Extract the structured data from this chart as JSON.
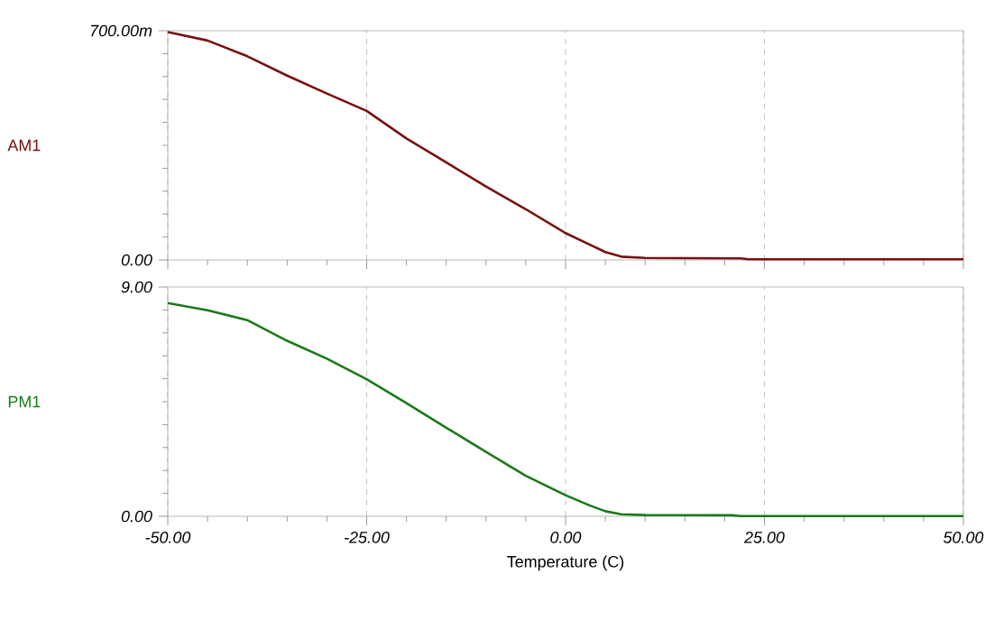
{
  "chart_data": [
    {
      "type": "line",
      "ylabel": "AM1",
      "x": [
        -50,
        -45,
        -40,
        -35,
        -30,
        -25,
        -20,
        -15,
        -10,
        -5,
        0,
        3,
        5,
        7,
        10,
        22,
        23,
        50
      ],
      "series": [
        {
          "color": "#7a1010",
          "values": [
            696,
            670,
            622,
            563,
            508,
            455,
            371,
            298,
            224,
            155,
            82,
            47,
            24,
            10,
            6,
            5,
            2,
            2
          ]
        }
      ],
      "xlim": [
        -50,
        50
      ],
      "xticks": [
        {
          "value": -50,
          "label": null
        },
        {
          "value": -25,
          "label": null
        },
        {
          "value": 0,
          "label": null
        },
        {
          "value": 25,
          "label": null
        },
        {
          "value": 50,
          "label": null
        }
      ],
      "ylim": [
        0,
        700
      ],
      "yticks": [
        {
          "value": 0,
          "label": "0.00"
        },
        {
          "value": 700,
          "label": "700.00m"
        }
      ],
      "grid": "x",
      "tick_labels": "y"
    },
    {
      "type": "line",
      "ylabel": "PM1",
      "xlabel": "Temperature (C)",
      "x": [
        -50,
        -45,
        -40,
        -35,
        -30,
        -25,
        -20,
        -15,
        -10,
        -5,
        0,
        3,
        5,
        7,
        10,
        21,
        22,
        50
      ],
      "series": [
        {
          "color": "#1a7a1a",
          "values": [
            8.37,
            8.09,
            7.7,
            6.89,
            6.19,
            5.38,
            4.44,
            3.48,
            2.53,
            1.59,
            0.83,
            0.43,
            0.2,
            0.08,
            0.05,
            0.04,
            0.01,
            0.01
          ]
        }
      ],
      "xlim": [
        -50,
        50
      ],
      "xticks": [
        {
          "value": -50,
          "label": "-50.00"
        },
        {
          "value": -25,
          "label": "-25.00"
        },
        {
          "value": 0,
          "label": "0.00"
        },
        {
          "value": 25,
          "label": "25.00"
        },
        {
          "value": 50,
          "label": "50.00"
        }
      ],
      "ylim": [
        0,
        9
      ],
      "yticks": [
        {
          "value": 0,
          "label": "0.00"
        },
        {
          "value": 9,
          "label": "9.00"
        }
      ],
      "grid": "x"
    }
  ]
}
